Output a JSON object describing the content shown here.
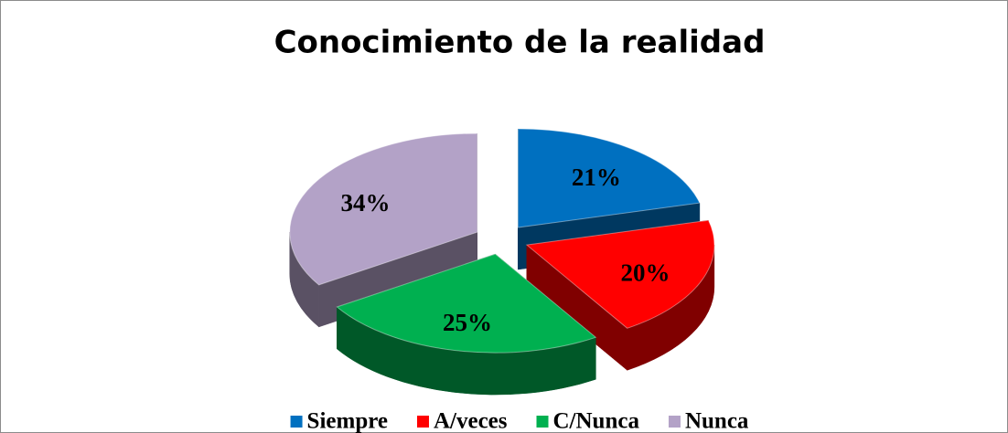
{
  "chart_data": {
    "type": "pie",
    "title": "Conocimiento de la realidad",
    "categories": [
      "Siempre",
      "A/veces",
      "C/Nunca",
      "Nunca"
    ],
    "values": [
      21,
      20,
      25,
      34
    ],
    "value_labels": [
      "21%",
      "20%",
      "25%",
      "34%"
    ],
    "colors": [
      "#0070c0",
      "#ff0000",
      "#00b050",
      "#b3a2c7"
    ],
    "legend": "bottom"
  }
}
